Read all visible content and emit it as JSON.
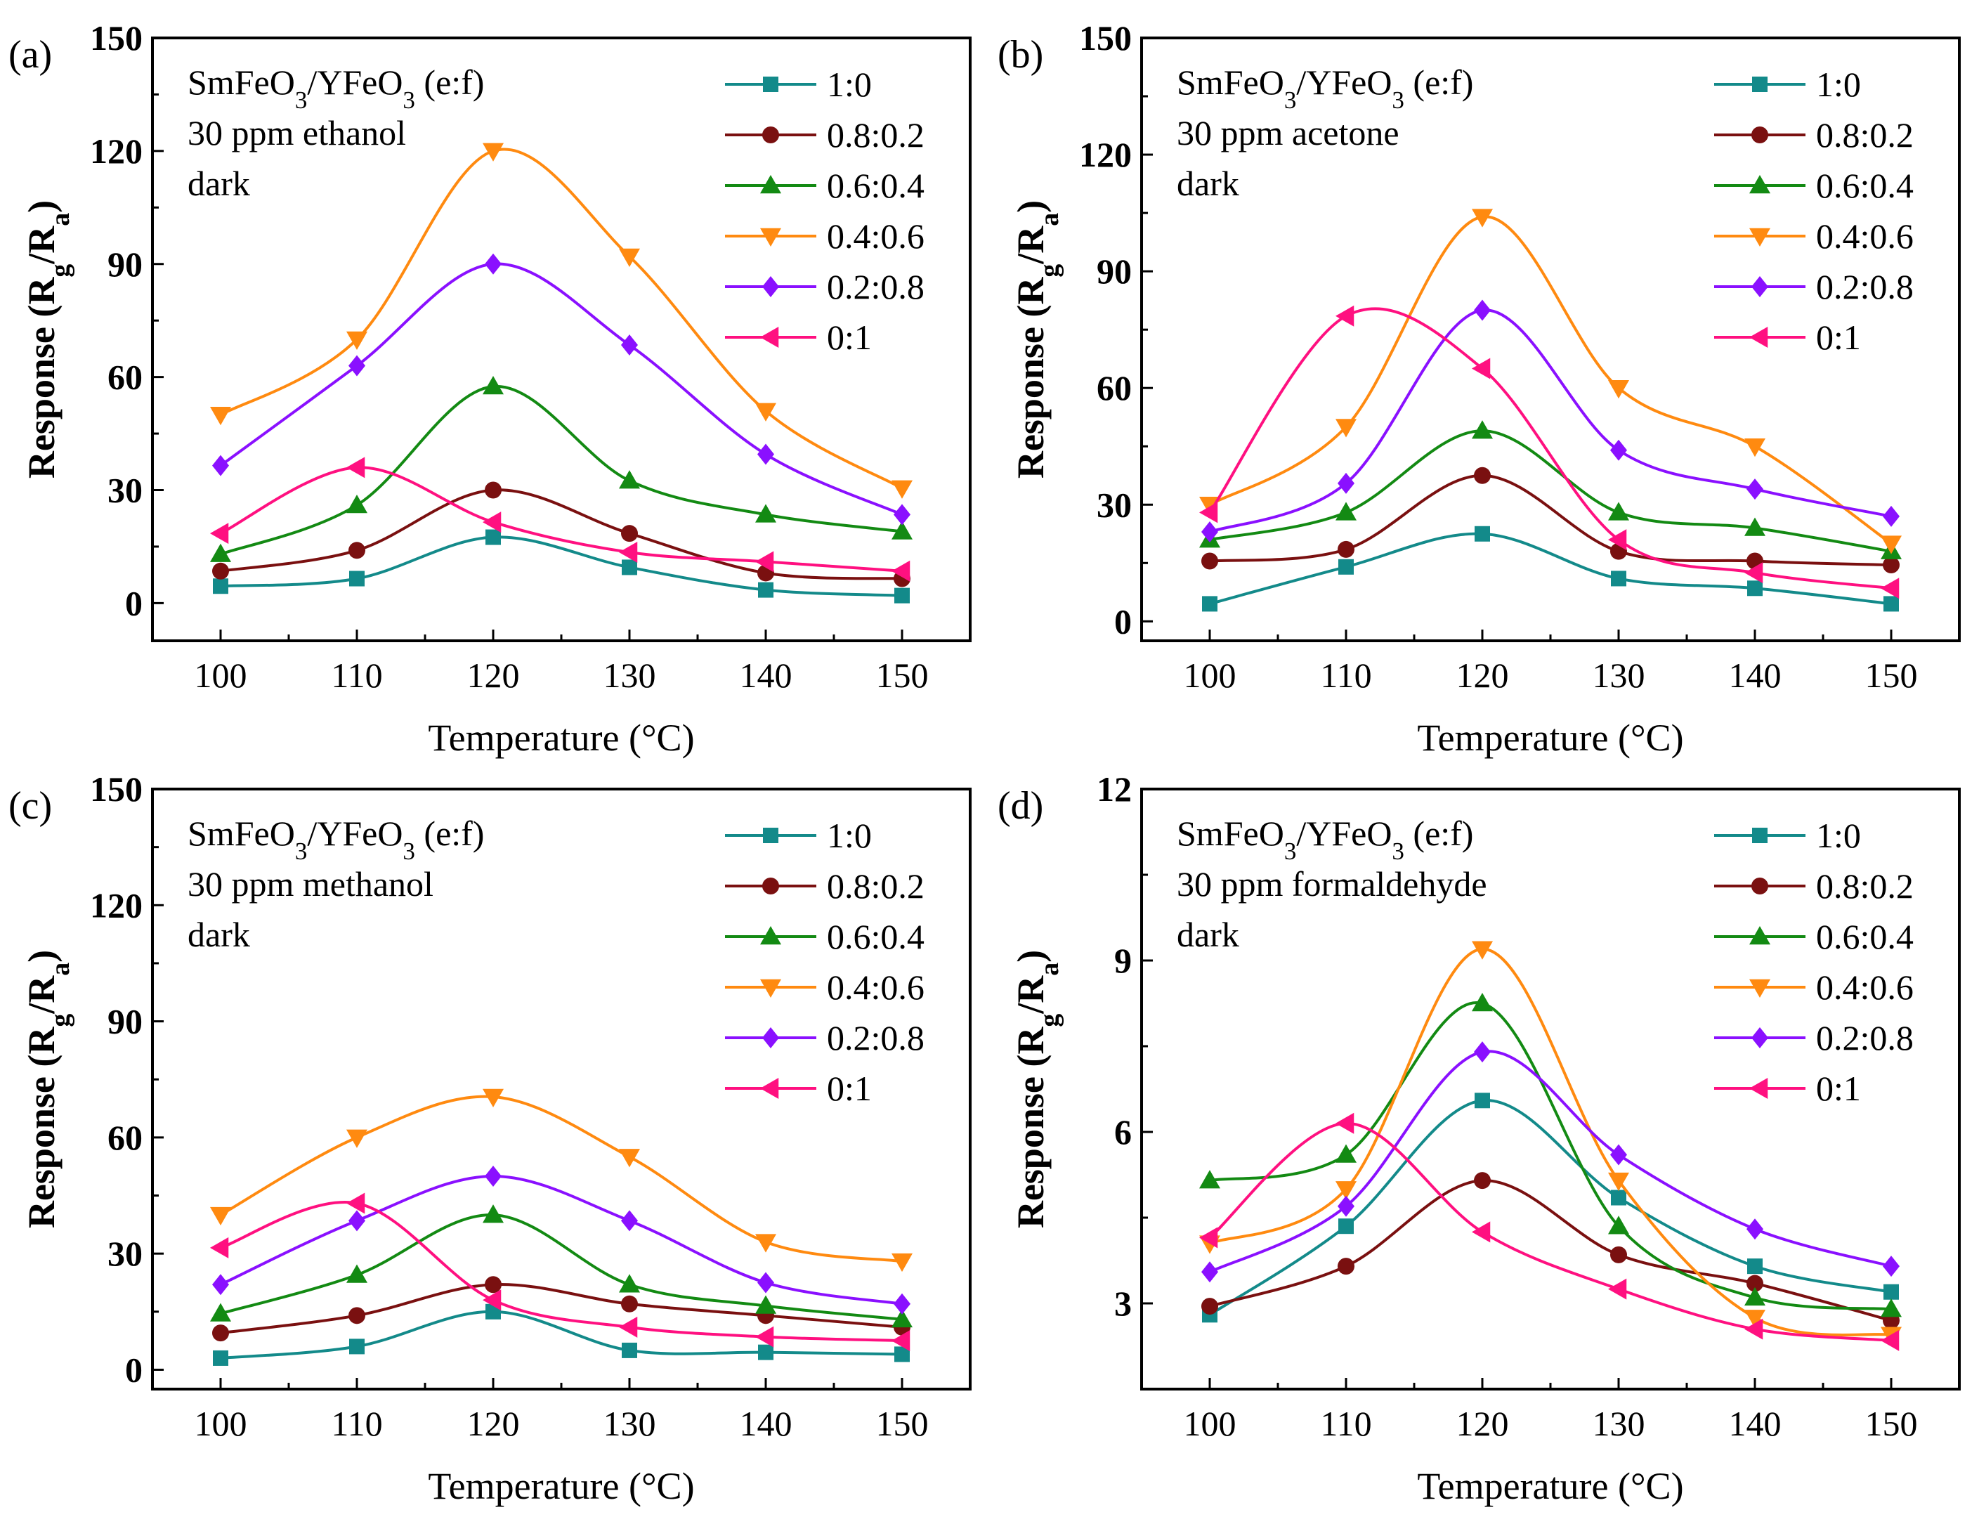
{
  "chart_data": [
    {
      "type": "line",
      "panel_label": "(a)",
      "annotation": [
        "SmFeO3/YFeO3 (e:f)",
        "30 ppm ethanol",
        "dark"
      ],
      "xlabel": "Temperature (°C)",
      "ylabel": "Response (Rg/Ra)",
      "x": [
        100,
        110,
        120,
        130,
        140,
        150
      ],
      "xlim": [
        95,
        155
      ],
      "ylim": [
        -10,
        150
      ],
      "yticks": [
        0,
        30,
        60,
        90,
        120,
        150
      ],
      "xticks": [
        100,
        110,
        120,
        130,
        140,
        150
      ],
      "legend_position": "top-right",
      "series": [
        {
          "name": "1:0",
          "values": [
            4.5,
            6.5,
            17.5,
            9.5,
            3.5,
            2
          ]
        },
        {
          "name": "0.8:0.2",
          "values": [
            8.5,
            14,
            30,
            18.5,
            8,
            6.5
          ]
        },
        {
          "name": "0.6:0.4",
          "values": [
            13,
            26,
            57.5,
            32.5,
            23.5,
            19
          ]
        },
        {
          "name": "0.4:0.6",
          "values": [
            50,
            70,
            120,
            92,
            51,
            30.5
          ]
        },
        {
          "name": "0.2:0.8",
          "values": [
            36.5,
            63,
            90,
            68.5,
            39.5,
            23.5
          ]
        },
        {
          "name": "0:1",
          "values": [
            18.5,
            36,
            21.5,
            13.5,
            11,
            8.5
          ]
        }
      ]
    },
    {
      "type": "line",
      "panel_label": "(b)",
      "annotation": [
        "SmFeO3/YFeO3 (e:f)",
        "30 ppm acetone",
        "dark"
      ],
      "xlabel": "Temperature (°C)",
      "ylabel": "Response (Rg/Ra)",
      "x": [
        100,
        110,
        120,
        130,
        140,
        150
      ],
      "xlim": [
        95,
        155
      ],
      "ylim": [
        -5,
        150
      ],
      "yticks": [
        0,
        30,
        60,
        90,
        120,
        150
      ],
      "xticks": [
        100,
        110,
        120,
        130,
        140,
        150
      ],
      "legend_position": "top-right",
      "series": [
        {
          "name": "1:0",
          "values": [
            4.5,
            14,
            22.5,
            11,
            8.5,
            4.5
          ]
        },
        {
          "name": "0.8:0.2",
          "values": [
            15.5,
            18.5,
            37.5,
            18,
            15.5,
            14.5
          ]
        },
        {
          "name": "0.6:0.4",
          "values": [
            21,
            28,
            49,
            28,
            24,
            18
          ]
        },
        {
          "name": "0.4:0.6",
          "values": [
            30,
            50,
            104,
            60,
            45,
            20
          ]
        },
        {
          "name": "0.2:0.8",
          "values": [
            23,
            35.5,
            80,
            44,
            34,
            27
          ]
        },
        {
          "name": "0:1",
          "values": [
            28,
            78.5,
            65,
            21,
            12.5,
            8.5
          ]
        }
      ]
    },
    {
      "type": "line",
      "panel_label": "(c)",
      "annotation": [
        "SmFeO3/YFeO3 (e:f)",
        "30 ppm methanol",
        "dark"
      ],
      "xlabel": "Temperature (°C)",
      "ylabel": "Response (Rg/Ra)",
      "x": [
        100,
        110,
        120,
        130,
        140,
        150
      ],
      "xlim": [
        95,
        155
      ],
      "ylim": [
        -5,
        150
      ],
      "yticks": [
        0,
        30,
        60,
        90,
        120,
        150
      ],
      "xticks": [
        100,
        110,
        120,
        130,
        140,
        150
      ],
      "legend_position": "top-right",
      "series": [
        {
          "name": "1:0",
          "values": [
            3,
            6,
            15,
            5,
            4.5,
            4
          ]
        },
        {
          "name": "0.8:0.2",
          "values": [
            9.5,
            14,
            22,
            17,
            14,
            11
          ]
        },
        {
          "name": "0.6:0.4",
          "values": [
            14.5,
            24.5,
            40,
            22,
            16.5,
            13
          ]
        },
        {
          "name": "0.4:0.6",
          "values": [
            40,
            60,
            70.5,
            55,
            33,
            28
          ]
        },
        {
          "name": "0.2:0.8",
          "values": [
            22,
            38.5,
            50,
            38.5,
            22.5,
            17
          ]
        },
        {
          "name": "0:1",
          "values": [
            31.5,
            43,
            18,
            11,
            8.5,
            7.5
          ]
        }
      ]
    },
    {
      "type": "line",
      "panel_label": "(d)",
      "annotation": [
        "SmFeO3/YFeO3 (e:f)",
        "30 ppm formaldehyde",
        "dark"
      ],
      "xlabel": "Temperature (°C)",
      "ylabel": "Response (Rg/Ra)",
      "x": [
        100,
        110,
        120,
        130,
        140,
        150
      ],
      "xlim": [
        95,
        155
      ],
      "ylim": [
        1.5,
        12
      ],
      "yticks": [
        3,
        6,
        9,
        12
      ],
      "xticks": [
        100,
        110,
        120,
        130,
        140,
        150
      ],
      "legend_position": "top-right",
      "series": [
        {
          "name": "1:0",
          "values": [
            2.8,
            4.35,
            6.55,
            4.85,
            3.65,
            3.2
          ]
        },
        {
          "name": "0.8:0.2",
          "values": [
            2.95,
            3.65,
            5.15,
            3.85,
            3.35,
            2.7
          ]
        },
        {
          "name": "0.6:0.4",
          "values": [
            5.15,
            5.6,
            8.25,
            4.35,
            3.1,
            2.9
          ]
        },
        {
          "name": "0.4:0.6",
          "values": [
            4.05,
            5.0,
            9.2,
            5.15,
            2.75,
            2.45
          ]
        },
        {
          "name": "0.2:0.8",
          "values": [
            3.55,
            4.7,
            7.4,
            5.6,
            4.3,
            3.65
          ]
        },
        {
          "name": "0:1",
          "values": [
            4.15,
            6.15,
            4.25,
            3.25,
            2.55,
            2.35
          ]
        }
      ]
    }
  ],
  "series_style": [
    {
      "color": "#138a8a",
      "marker": "square"
    },
    {
      "color": "#7a1010",
      "marker": "circle"
    },
    {
      "color": "#138a13",
      "marker": "triangle-up"
    },
    {
      "color": "#ff8a10",
      "marker": "triangle-down"
    },
    {
      "color": "#8a10ff",
      "marker": "diamond"
    },
    {
      "color": "#ff1080",
      "marker": "triangle-left"
    }
  ]
}
